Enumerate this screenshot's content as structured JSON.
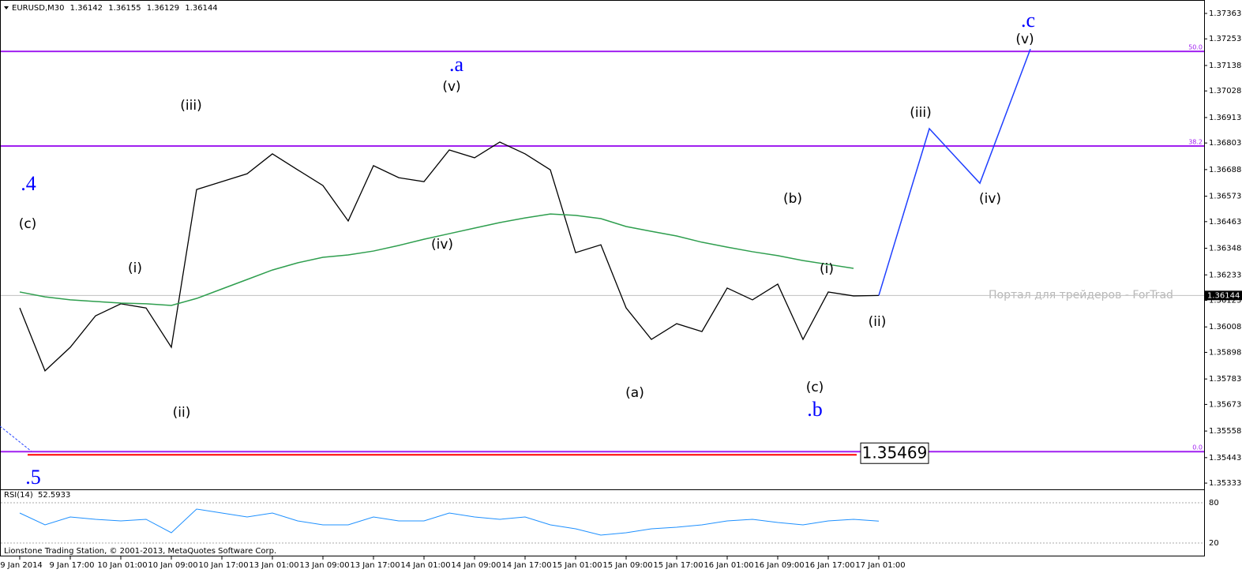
{
  "header": {
    "symbol": "EURUSD,M30",
    "ohlc": [
      1.36142,
      1.36155,
      1.36129,
      1.36144
    ]
  },
  "watermark": "Портал для трейдеров - ForTrad",
  "footer": "Lionstone Trading Station, © 2001-2013, MetaQuotes Software Corp.",
  "chart_data": [
    {
      "type": "line",
      "categories": [
        "9 Jan 2014",
        null,
        "9 Jan 17:00",
        null,
        "10 Jan 01:00",
        null,
        "10 Jan 09:00",
        null,
        "10 Jan 17:00",
        null,
        "13 Jan 01:00",
        null,
        "13 Jan 09:00",
        null,
        "13 Jan 17:00",
        null,
        "14 Jan 01:00",
        null,
        "14 Jan 09:00",
        null,
        "14 Jan 17:00",
        null,
        "15 Jan 01:00",
        null,
        "15 Jan 09:00",
        null,
        "15 Jan 17:00",
        null,
        "16 Jan 01:00",
        null,
        "16 Jan 09:00",
        null,
        "16 Jan 17:00",
        null,
        "17 Jan 01:00",
        null,
        null,
        null,
        null,
        null,
        null
      ],
      "series": [
        {
          "color": "#000000",
          "values": [
            1.3609,
            1.35818,
            1.3592,
            1.36056,
            1.36108,
            1.3609,
            1.3592,
            1.36602,
            1.36636,
            1.3667,
            1.36756,
            1.36687,
            1.36619,
            1.36466,
            1.36705,
            1.36653,
            1.36636,
            1.36773,
            1.36739,
            1.36807,
            1.36756,
            1.36687,
            1.36329,
            1.36363,
            1.3609,
            1.35954,
            1.36022,
            1.35988,
            1.36176,
            1.36125,
            1.36193,
            1.35954,
            1.36159,
            1.36142,
            1.36144,
            null,
            null,
            null,
            null,
            null,
            null
          ]
        },
        {
          "color": "#2e9e4e",
          "values": [
            1.36159,
            1.36138,
            1.36125,
            1.36118,
            1.36111,
            1.36108,
            1.36101,
            1.36131,
            1.36172,
            1.36213,
            1.36254,
            1.36285,
            1.36309,
            1.36319,
            1.36336,
            1.3636,
            1.36387,
            1.36411,
            1.36435,
            1.36459,
            1.36479,
            1.36496,
            1.3649,
            1.36476,
            1.36442,
            1.36421,
            1.36401,
            1.36374,
            1.36353,
            1.36333,
            1.36316,
            1.36295,
            1.36278,
            1.36261,
            null,
            null,
            null,
            null,
            null,
            null,
            null
          ]
        },
        {
          "color": "#1f3fff",
          "values": [
            null,
            null,
            null,
            null,
            null,
            null,
            null,
            null,
            null,
            null,
            null,
            null,
            null,
            null,
            null,
            null,
            null,
            null,
            null,
            null,
            null,
            null,
            null,
            null,
            null,
            null,
            null,
            null,
            null,
            null,
            null,
            null,
            null,
            null,
            1.36144,
            1.36505,
            1.36865,
            1.36747,
            1.36629,
            1.36919,
            1.37209
          ]
        }
      ],
      "ylim": [
        1.35306,
        1.37421
      ],
      "yticks": [
        1.37363,
        1.37253,
        1.37138,
        1.37028,
        1.36913,
        1.36803,
        1.36688,
        1.36573,
        1.36463,
        1.36348,
        1.36233,
        1.36123,
        1.36008,
        1.35898,
        1.35783,
        1.35673,
        1.35558,
        1.35443,
        1.35333
      ],
      "levels": [
        {
          "value": 1.37199,
          "label": "50.0"
        },
        {
          "value": 1.3679,
          "label": "38.2"
        },
        {
          "value": 1.35469,
          "label": "0.0"
        }
      ],
      "level_color": "#a020f0",
      "price_marker": 1.35469,
      "marker_color": "#ff0000",
      "annotations": [
        {
          "text": ".4",
          "color": "#0000ff"
        },
        {
          "text": "(c)",
          "color": "#000000"
        },
        {
          "text": ".5",
          "color": "#0000ff"
        },
        {
          "text": "(i)",
          "color": "#000000"
        },
        {
          "text": "(ii)",
          "color": "#000000"
        },
        {
          "text": "(iii)",
          "color": "#000000"
        },
        {
          "text": ".a",
          "color": "#0000ff"
        },
        {
          "text": "(v)",
          "color": "#000000"
        },
        {
          "text": "(iv)",
          "color": "#000000"
        },
        {
          "text": "(a)",
          "color": "#000000"
        },
        {
          "text": "(b)",
          "color": "#000000"
        },
        {
          "text": "(c)",
          "color": "#000000"
        },
        {
          "text": ".b",
          "color": "#0000ff"
        },
        {
          "text": "(i)",
          "color": "#000000"
        },
        {
          "text": "(ii)",
          "color": "#000000"
        },
        {
          "text": "(iii)",
          "color": "#000000"
        },
        {
          "text": "(iv)",
          "color": "#000000"
        },
        {
          "text": ".c",
          "color": "#0000ff"
        },
        {
          "text": "(v)",
          "color": "#000000"
        }
      ]
    },
    {
      "type": "line",
      "title": "RSI(14)",
      "title_value": 52.5933,
      "series": [
        {
          "color": "#1e90ff",
          "values": [
            64.7,
            47.1,
            58.8,
            55.3,
            52.9,
            55.3,
            35.3,
            70.6,
            64.7,
            58.8,
            64.7,
            52.9,
            47.1,
            47.1,
            58.8,
            52.9,
            52.9,
            64.7,
            58.8,
            55.3,
            58.8,
            47.1,
            41.2,
            31.8,
            35.3,
            41.2,
            43.5,
            47.1,
            52.9,
            55.3,
            50.6,
            47.1,
            52.9,
            55.3,
            52.6,
            null,
            null,
            null,
            null,
            null,
            null
          ]
        }
      ],
      "ylim": [
        0,
        100
      ],
      "yticks": [
        20,
        80
      ],
      "grid": true
    }
  ]
}
